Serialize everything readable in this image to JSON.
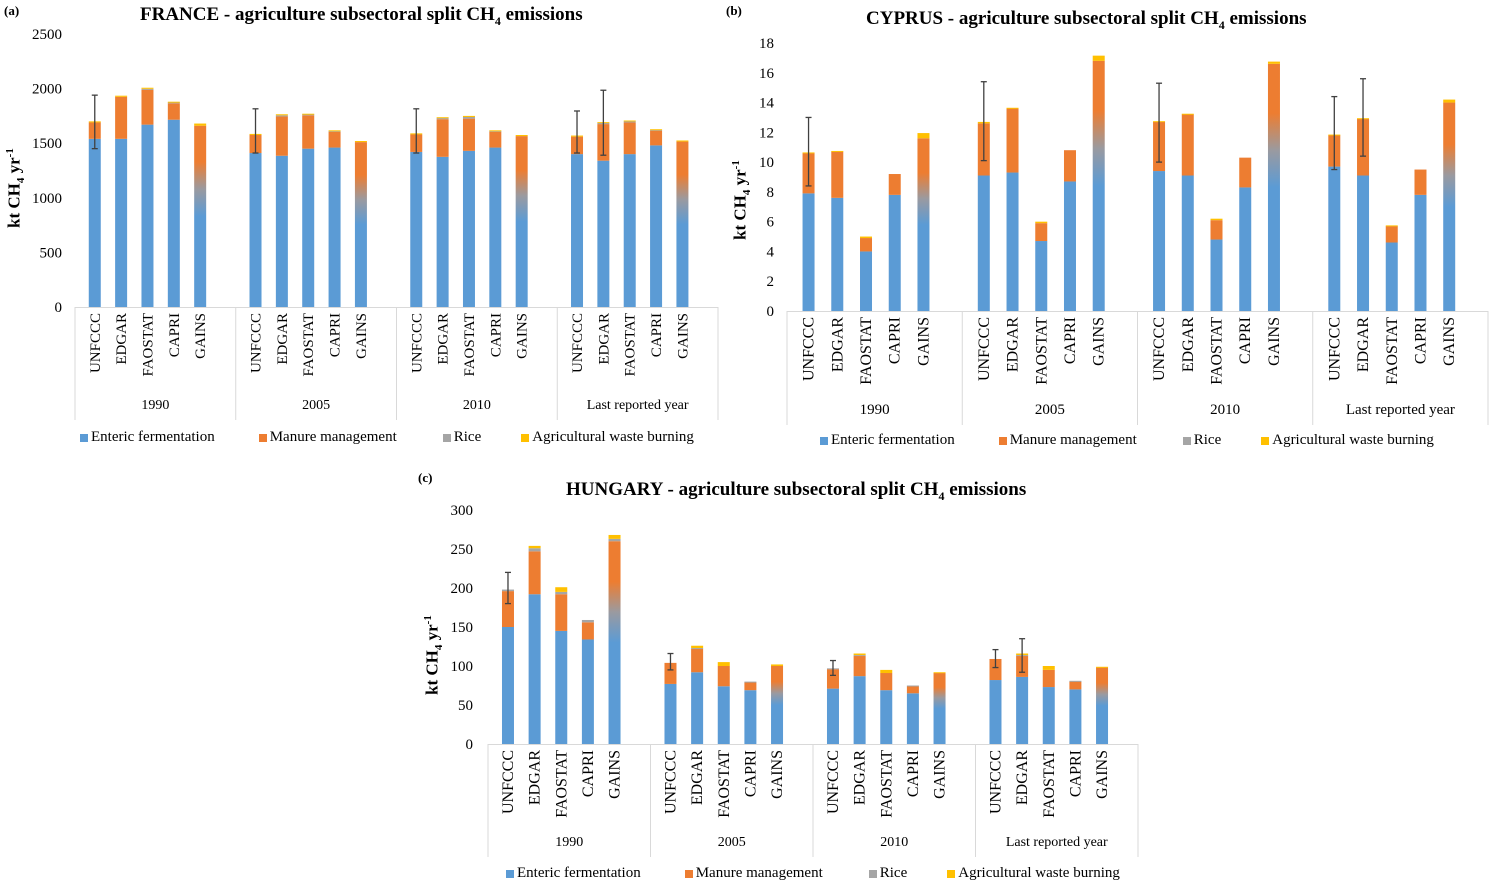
{
  "legend": [
    {
      "key": "enteric",
      "label": "Enteric fermentation",
      "color": "#5B9BD5"
    },
    {
      "key": "manure",
      "label": "Manure management",
      "color": "#ED7D31"
    },
    {
      "key": "rice",
      "label": "Rice",
      "color": "#A5A5A5"
    },
    {
      "key": "burning",
      "label": "Agricultural waste burning",
      "color": "#FFC000"
    }
  ],
  "chart_data": [
    {
      "id": "france",
      "panel_label": "(a)",
      "type": "bar",
      "stacked": true,
      "title_prefix": "FRANCE - agriculture  subsectoral split  CH",
      "title_sub": "4",
      "title_suffix": " emissions",
      "ylabel_main": "kt  CH",
      "ylabel_sub": "4",
      "ylabel_unit": " yr",
      "ylabel_sup": "-1",
      "ylim": [
        0,
        2500
      ],
      "yticks": [
        0,
        500,
        1000,
        1500,
        2000,
        2500
      ],
      "groups": [
        "1990",
        "2005",
        "2010",
        "Last reported year"
      ],
      "categories": [
        "UNFCCC",
        "EDGAR",
        "FAOSTAT",
        "CAPRI",
        "GAINS"
      ],
      "gradient_category": "GAINS",
      "series": [
        {
          "name": "Enteric fermentation",
          "values": [
            [
              1540,
              1540,
              1670,
              1715,
              760
            ],
            [
              1410,
              1385,
              1450,
              1460,
              760
            ],
            [
              1420,
              1375,
              1430,
              1460,
              730
            ],
            [
              1400,
              1340,
              1400,
              1480,
              720
            ]
          ]
        },
        {
          "name": "Manure management",
          "values": [
            [
              150,
              385,
              320,
              150,
              900
            ],
            [
              165,
              360,
              305,
              145,
              750
            ],
            [
              160,
              345,
              295,
              145,
              835
            ],
            [
              160,
              335,
              290,
              135,
              795
            ]
          ]
        },
        {
          "name": "Rice",
          "values": [
            [
              0,
              0,
              8,
              10,
              0
            ],
            [
              0,
              10,
              10,
              8,
              0
            ],
            [
              0,
              10,
              15,
              8,
              0
            ],
            [
              0,
              10,
              10,
              8,
              0
            ]
          ]
        },
        {
          "name": "Agricultural waste burning",
          "values": [
            [
              10,
              10,
              10,
              5,
              20
            ],
            [
              10,
              10,
              5,
              5,
              10
            ],
            [
              10,
              8,
              10,
              5,
              10
            ],
            [
              10,
              8,
              8,
              5,
              10
            ]
          ]
        }
      ],
      "error_bars": [
        {
          "group": "1990",
          "category": "UNFCCC",
          "low": 1450,
          "high": 1940
        },
        {
          "group": "2005",
          "category": "UNFCCC",
          "low": 1410,
          "high": 1815
        },
        {
          "group": "2010",
          "category": "UNFCCC",
          "low": 1410,
          "high": 1815
        },
        {
          "group": "Last reported year",
          "category": "UNFCCC",
          "low": 1410,
          "high": 1795
        },
        {
          "group": "Last reported year",
          "category": "EDGAR",
          "low": 1390,
          "high": 1985
        }
      ]
    },
    {
      "id": "cyprus",
      "panel_label": "(b)",
      "type": "bar",
      "stacked": true,
      "title_prefix": "CYPRUS  -  agriculture  subsectoral split  CH",
      "title_sub": "4",
      "title_suffix": " emissions",
      "ylabel_main": "kt  CH",
      "ylabel_sub": "4",
      "ylabel_unit": " yr",
      "ylabel_sup": "-1",
      "ylim": [
        0,
        18
      ],
      "yticks": [
        0,
        2,
        4,
        6,
        8,
        10,
        12,
        14,
        16,
        18
      ],
      "groups": [
        "1990",
        "2005",
        "2010",
        "Last reported year"
      ],
      "categories": [
        "UNFCCC",
        "EDGAR",
        "FAOSTAT",
        "CAPRI",
        "GAINS"
      ],
      "gradient_category": "GAINS",
      "series": [
        {
          "name": "Enteric fermentation",
          "values": [
            [
              7.9,
              7.6,
              4.0,
              7.8,
              5.4
            ],
            [
              9.1,
              9.3,
              4.7,
              8.7,
              8.0
            ],
            [
              9.4,
              9.1,
              4.8,
              8.3,
              8.0
            ],
            [
              9.7,
              9.1,
              4.6,
              7.8,
              6.5
            ]
          ]
        },
        {
          "name": "Manure management",
          "values": [
            [
              2.7,
              3.1,
              0.9,
              1.4,
              6.2
            ],
            [
              3.5,
              4.3,
              1.2,
              2.1,
              8.8
            ],
            [
              3.3,
              4.1,
              1.3,
              2.0,
              8.6
            ],
            [
              2.1,
              3.8,
              1.1,
              1.7,
              7.5
            ]
          ]
        },
        {
          "name": "Rice",
          "values": [
            [
              0,
              0,
              0,
              0,
              0
            ],
            [
              0,
              0,
              0,
              0,
              0
            ],
            [
              0,
              0,
              0,
              0,
              0
            ],
            [
              0,
              0,
              0,
              0,
              0
            ]
          ]
        },
        {
          "name": "Agricultural waste burning",
          "values": [
            [
              0.05,
              0.05,
              0.1,
              0,
              0.35
            ],
            [
              0.1,
              0.05,
              0.1,
              0,
              0.35
            ],
            [
              0.05,
              0.05,
              0.1,
              0,
              0.15
            ],
            [
              0.05,
              0.05,
              0.05,
              0,
              0.2
            ]
          ]
        }
      ],
      "error_bars": [
        {
          "group": "1990",
          "category": "UNFCCC",
          "low": 8.4,
          "high": 13.0
        },
        {
          "group": "2005",
          "category": "UNFCCC",
          "low": 10.1,
          "high": 15.4
        },
        {
          "group": "2010",
          "category": "UNFCCC",
          "low": 10.0,
          "high": 15.3
        },
        {
          "group": "Last reported year",
          "category": "UNFCCC",
          "low": 9.5,
          "high": 14.4
        },
        {
          "group": "Last reported year",
          "category": "EDGAR",
          "low": 10.4,
          "high": 15.6
        }
      ]
    },
    {
      "id": "hungary",
      "panel_label": "(c)",
      "type": "bar",
      "stacked": true,
      "title_prefix": "HUNGARY  -  agriculture  subsectoral split  CH",
      "title_sub": "4",
      "title_suffix": " emissions",
      "ylabel_main": "kt  CH",
      "ylabel_sub": "4",
      "ylabel_unit": " yr",
      "ylabel_sup": "-1",
      "ylim": [
        0,
        300
      ],
      "yticks": [
        0,
        50,
        100,
        150,
        200,
        250,
        300
      ],
      "groups": [
        "1990",
        "2005",
        "2010",
        "Last reported year"
      ],
      "categories": [
        "UNFCCC",
        "EDGAR",
        "FAOSTAT",
        "CAPRI",
        "GAINS"
      ],
      "gradient_category": "GAINS",
      "series": [
        {
          "name": "Enteric fermentation",
          "values": [
            [
              150,
              192,
              145,
              134,
              120
            ],
            [
              77,
              92,
              74,
              69,
              48
            ],
            [
              71,
              87,
              69,
              65,
              42
            ],
            [
              82,
              86,
              73,
              70,
              48
            ]
          ]
        },
        {
          "name": "Manure management",
          "values": [
            [
              46,
              55,
              47,
              22,
              140
            ],
            [
              27,
              30,
              26,
              10,
              52
            ],
            [
              25,
              26,
              22,
              9,
              49
            ],
            [
              27,
              27,
              22,
              10,
              50
            ]
          ]
        },
        {
          "name": "Rice",
          "values": [
            [
              2,
              4,
              3,
              3,
              3
            ],
            [
              0,
              1,
              0,
              1,
              0
            ],
            [
              1,
              1,
              0,
              1,
              0
            ],
            [
              0,
              1,
              0,
              1,
              0
            ]
          ]
        },
        {
          "name": "Agricultural waste burning",
          "values": [
            [
              0,
              3,
              6,
              0,
              5
            ],
            [
              0,
              3,
              5,
              0,
              2
            ],
            [
              0,
              2,
              4,
              0,
              1
            ],
            [
              0,
              2,
              5,
              0,
              1
            ]
          ]
        }
      ],
      "error_bars": [
        {
          "group": "1990",
          "category": "UNFCCC",
          "low": 180,
          "high": 220
        },
        {
          "group": "2005",
          "category": "UNFCCC",
          "low": 95,
          "high": 116
        },
        {
          "group": "2010",
          "category": "UNFCCC",
          "low": 88,
          "high": 107
        },
        {
          "group": "Last reported year",
          "category": "UNFCCC",
          "low": 98,
          "high": 121
        },
        {
          "group": "Last reported year",
          "category": "EDGAR",
          "low": 92,
          "high": 135
        }
      ]
    }
  ]
}
